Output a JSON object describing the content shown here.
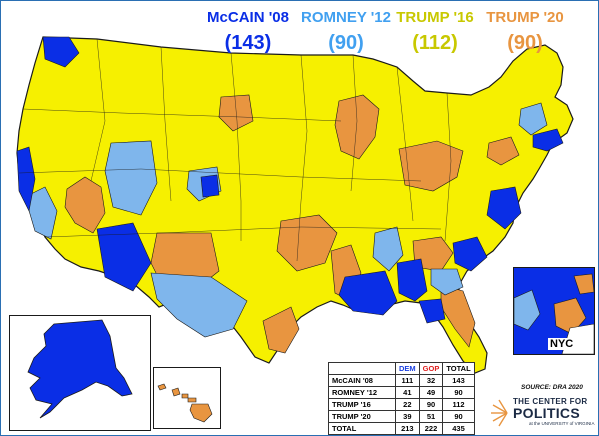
{
  "colors": {
    "mccain_08": "#0a2ee6",
    "romney_12": "#7fb6ec",
    "trump_16": "#f6f000",
    "trump_20": "#e89540",
    "democratic": "#ffffff",
    "border": "#1a1a1a",
    "water": "#ffffff"
  },
  "headline": {
    "items": [
      {
        "label": "McCAIN '08",
        "count": "(143)",
        "color": "#0a2ee6"
      },
      {
        "label": "ROMNEY '12",
        "count": "(90)",
        "color": "#41a0f0"
      },
      {
        "label": "TRUMP '16",
        "count": "(112)",
        "color": "#c8c800"
      },
      {
        "label": "TRUMP '20",
        "count": "(90)",
        "color": "#e89540"
      }
    ]
  },
  "inset": {
    "nyc_label": "NYC"
  },
  "table": {
    "headers": {
      "blank": "",
      "dem": "DEM",
      "gop": "GOP",
      "total": "TOTAL"
    },
    "rows": [
      {
        "label": "McCAIN '08",
        "dem": "111",
        "gop": "32",
        "total": "143"
      },
      {
        "label": "ROMNEY '12",
        "dem": "41",
        "gop": "49",
        "total": "90"
      },
      {
        "label": "TRUMP '16",
        "dem": "22",
        "gop": "90",
        "total": "112"
      },
      {
        "label": "TRUMP '20",
        "dem": "39",
        "gop": "51",
        "total": "90"
      },
      {
        "label": "TOTAL",
        "dem": "213",
        "gop": "222",
        "total": "435"
      }
    ]
  },
  "source": "SOURCE: DRA 2020",
  "logo": {
    "line1": "THE CENTER FOR",
    "line2": "POLITICS",
    "line3": "at the UNIVERSITY of VIRGINIA"
  }
}
